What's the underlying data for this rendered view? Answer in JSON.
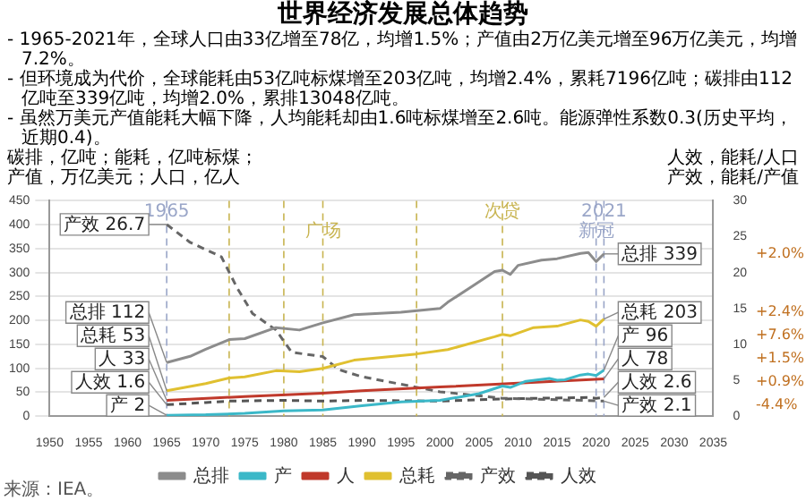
{
  "chart_data": {
    "type": "line",
    "title": "世界经济发展总体趋势",
    "subtitle": "- 1965-2021年，全球人口由33亿增至78亿，均增1.5%；产值由2万亿美元增至96万亿美元，均增7.2%。",
    "ylabel": "碳排，亿吨；能耗，亿吨标煤；产值，万亿美元；人口，亿人",
    "y2label": "人效，能耗/人口产效，能耗/产值",
    "xlim": [
      1950,
      2035
    ],
    "xticks": [
      1950,
      1955,
      1960,
      1965,
      1970,
      1975,
      1980,
      1985,
      1990,
      1995,
      2000,
      2005,
      2010,
      2015,
      2020,
      2025,
      2030,
      2035
    ],
    "ylim": [
      0,
      450
    ],
    "yticks": [
      0,
      50,
      100,
      150,
      200,
      250,
      300,
      350,
      400,
      450
    ],
    "y2lim": [
      0,
      30
    ],
    "y2ticks": [
      0,
      5,
      10,
      15,
      20,
      25,
      30
    ],
    "grid": "y",
    "legend": "bottom",
    "marker": "none",
    "line_style": "solid",
    "series": [
      {
        "name": "总排",
        "color": "#8c8c8c",
        "x": [
          1965,
          1968,
          1970,
          1973,
          1975,
          1979,
          1982,
          1985,
          1989,
          1995,
          2000,
          2001,
          2004,
          2007,
          2008,
          2009,
          2010,
          2013,
          2015,
          2018,
          2019,
          2020,
          2021
        ],
        "values": [
          112,
          125,
          140,
          160,
          162,
          185,
          180,
          195,
          212,
          217,
          225,
          238,
          270,
          302,
          305,
          296,
          315,
          326,
          329,
          340,
          342,
          323,
          339
        ],
        "value_labels": [
          "总排 112",
          null,
          null,
          null,
          null,
          null,
          null,
          null,
          null,
          null,
          null,
          null,
          null,
          null,
          null,
          null,
          null,
          null,
          null,
          null,
          null,
          null,
          "总排 339"
        ]
      },
      {
        "name": "产",
        "color": "#3bb8c8",
        "x": [
          1965,
          1970,
          1975,
          1980,
          1985,
          1990,
          1995,
          2000,
          2005,
          2008,
          2009,
          2011,
          2014,
          2015,
          2016,
          2018,
          2019,
          2020,
          2021
        ],
        "values": [
          2,
          3,
          6,
          11,
          13,
          22,
          30,
          33,
          47,
          63,
          60,
          73,
          79,
          75,
          76,
          86,
          88,
          85,
          96
        ],
        "value_labels": [
          "产 2",
          null,
          null,
          null,
          null,
          null,
          null,
          null,
          null,
          null,
          null,
          null,
          null,
          null,
          null,
          null,
          null,
          null,
          "产 96"
        ]
      },
      {
        "name": "人",
        "color": "#c0392b",
        "x": [
          1965,
          1975,
          1985,
          1990,
          2000,
          2010,
          2021
        ],
        "values": [
          33,
          41,
          48,
          53,
          61,
          69,
          78
        ],
        "value_labels": [
          "人 33",
          null,
          null,
          null,
          null,
          null,
          "人 78"
        ]
      },
      {
        "name": "总耗",
        "color": "#e0c030",
        "x": [
          1965,
          1970,
          1973,
          1975,
          1979,
          1982,
          1985,
          1989,
          1997,
          2001,
          2007,
          2008,
          2009,
          2012,
          2015,
          2018,
          2019,
          2020,
          2021
        ],
        "values": [
          53,
          68,
          80,
          82,
          95,
          93,
          100,
          117,
          130,
          139,
          166,
          171,
          168,
          185,
          188,
          201,
          198,
          188,
          203
        ],
        "value_labels": [
          "总耗 53",
          null,
          null,
          null,
          null,
          null,
          null,
          null,
          null,
          null,
          null,
          null,
          null,
          null,
          null,
          null,
          null,
          null,
          "总耗 203"
        ]
      },
      {
        "name": "产效",
        "color": "#666666",
        "axis": "y2",
        "line_style": "dashed",
        "x": [
          1965,
          1968,
          1972,
          1974,
          1976,
          1979,
          1981,
          1985,
          1987,
          1990,
          2000,
          2008,
          2015,
          2021
        ],
        "values": [
          26.7,
          24.2,
          22.2,
          17.9,
          14.3,
          12,
          8.9,
          8.3,
          6.5,
          5.5,
          3.4,
          2.5,
          2.3,
          2.1
        ],
        "value_labels": [
          "产效 26.7",
          null,
          null,
          null,
          null,
          null,
          null,
          null,
          null,
          null,
          null,
          null,
          null,
          "产效 2.1"
        ]
      },
      {
        "name": "人效",
        "color": "#555555",
        "axis": "y2",
        "line_style": "dashed",
        "x": [
          1965,
          1970,
          1973,
          1980,
          1985,
          1990,
          2000,
          2008,
          2013,
          2019,
          2020,
          2021
        ],
        "values": [
          1.6,
          1.9,
          2.1,
          2.2,
          2.1,
          2.2,
          2.1,
          2.4,
          2.5,
          2.6,
          2.5,
          2.6
        ],
        "value_labels": [
          "人效 1.6",
          null,
          null,
          null,
          null,
          null,
          null,
          null,
          null,
          null,
          null,
          "人效 2.6"
        ]
      }
    ],
    "ref_lines": [
      {
        "axis": "x",
        "value": 1965,
        "label": "1965",
        "color": "#9aa6c8",
        "line_style": "dashed"
      },
      {
        "axis": "x",
        "value": 1973,
        "color": "#c8b450",
        "line_style": "dashed"
      },
      {
        "axis": "x",
        "value": 1980,
        "color": "#c8b450",
        "line_style": "dashed"
      },
      {
        "axis": "x",
        "value": 1985,
        "label": "广场",
        "color": "#c8b450",
        "line_style": "dashed"
      },
      {
        "axis": "x",
        "value": 1997,
        "color": "#c8b450",
        "line_style": "dashed"
      },
      {
        "axis": "x",
        "value": 2008,
        "label": "次贷",
        "color": "#c8b450",
        "line_style": "dashed"
      },
      {
        "axis": "x",
        "value": 2020,
        "label": "新冠",
        "color": "#9aa6c8",
        "line_style": "dashed"
      },
      {
        "axis": "x",
        "value": 2021,
        "label": "2021",
        "color": "#9aa6c8",
        "line_style": "dashed"
      }
    ],
    "annotations": [
      "- 但环境成为代价，全球能耗由53亿吨标煤增至203亿吨，均增2.4%，累耗7196亿吨；碳排由112亿吨至339亿吨，均增2.0%，累排13048亿吨。",
      "- 虽然万美元产值能耗大幅下降，人均能耗却由1.6吨标煤增至2.6吨。能源弹性系数0.3(历史平均，近期0.4)。",
      "+2.0%",
      "+7.6%",
      "+1.5%",
      "+2.4%",
      "-4.4%",
      "+0.9%",
      "来源：IEA。"
    ]
  }
}
